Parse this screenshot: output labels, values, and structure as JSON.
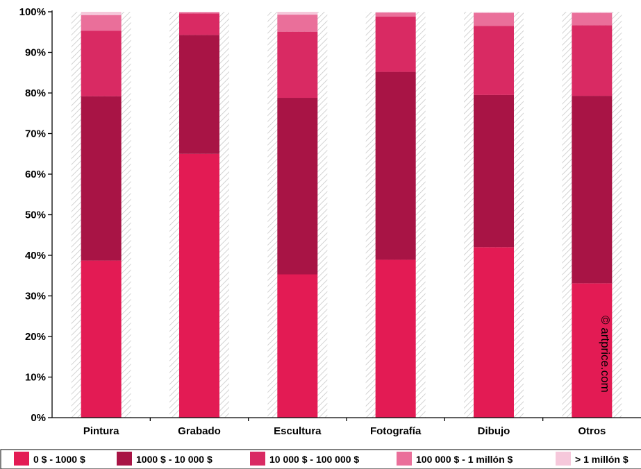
{
  "chart_data": {
    "type": "bar",
    "stacked": true,
    "normalized": true,
    "title": "",
    "xlabel": "",
    "ylabel": "",
    "ylim": [
      0,
      100
    ],
    "y_ticks": [
      "0%",
      "10%",
      "20%",
      "30%",
      "40%",
      "50%",
      "60%",
      "70%",
      "80%",
      "90%",
      "100%"
    ],
    "grid": false,
    "legend_position": "bottom",
    "categories": [
      "Pintura",
      "Grabado",
      "Escultura",
      "Fotografía",
      "Dibujo",
      "Otros"
    ],
    "series": [
      {
        "name": "0 $ - 1000 $",
        "color": "#e31b54",
        "values": [
          38.7,
          65.0,
          35.3,
          38.9,
          42.0,
          33.1
        ]
      },
      {
        "name": "1000 $ - 10 000 $",
        "color": "#a81445",
        "values": [
          40.5,
          29.3,
          43.5,
          46.3,
          37.5,
          46.2
        ]
      },
      {
        "name": "10 000 $ - 100 000 $",
        "color": "#d92a63",
        "values": [
          16.1,
          5.3,
          16.3,
          13.6,
          17.0,
          17.4
        ]
      },
      {
        "name": "100 000 $ - 1 millón $",
        "color": "#ea6f9a",
        "values": [
          3.9,
          0.3,
          4.2,
          1.0,
          3.2,
          3.0
        ]
      },
      {
        "name": "> 1 millón $",
        "color": "#f6c8db",
        "values": [
          0.8,
          0.1,
          0.7,
          0.2,
          0.3,
          0.3
        ]
      }
    ],
    "credit": "© artprice.com"
  }
}
